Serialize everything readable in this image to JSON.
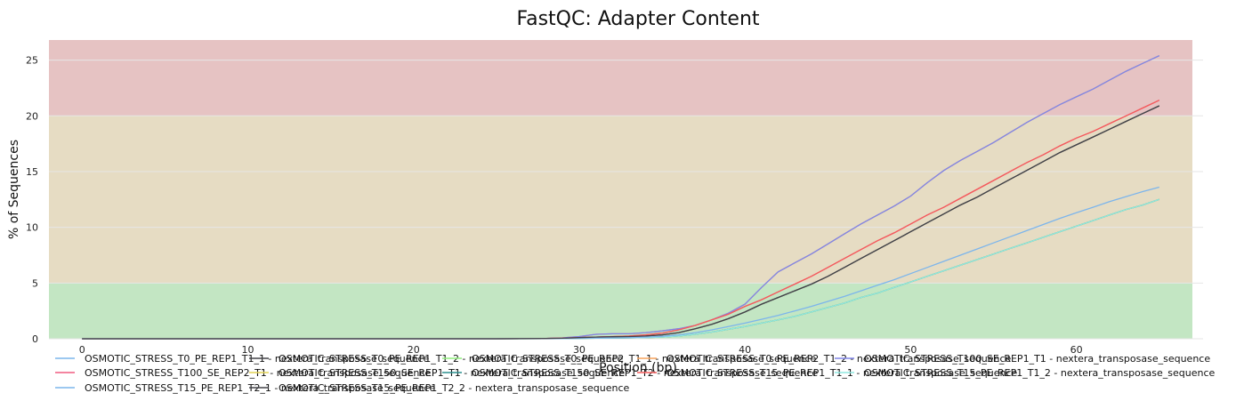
{
  "chart_data": {
    "type": "line",
    "title": "FastQC: Adapter Content",
    "xlabel": "Position (bp)",
    "ylabel": "% of Sequences",
    "xlim": [
      -2,
      67
    ],
    "ylim": [
      0,
      26.8
    ],
    "xticks": [
      0,
      10,
      20,
      30,
      40,
      50,
      60
    ],
    "yticks": [
      0,
      5,
      10,
      15,
      20,
      25
    ],
    "grid": true,
    "legend_position": "bottom",
    "bands": [
      {
        "from": 0,
        "to": 5,
        "color": "#c3e6c3"
      },
      {
        "from": 5,
        "to": 20,
        "color": "#e6dcc3"
      },
      {
        "from": 20,
        "to": 26.8,
        "color": "#e6c3c3"
      }
    ],
    "x": [
      0,
      5,
      10,
      15,
      20,
      25,
      28,
      29,
      30,
      31,
      32,
      33,
      34,
      35,
      36,
      37,
      38,
      39,
      40,
      41,
      42,
      43,
      44,
      45,
      46,
      47,
      48,
      49,
      50,
      51,
      52,
      53,
      54,
      55,
      56,
      57,
      58,
      59,
      60,
      61,
      62,
      63,
      64,
      65
    ],
    "series": [
      {
        "name": "OSMOTIC_STRESS_T0_PE_REP1_T1_1 - nextera_transposase_sequence",
        "color": "#7cb5ec",
        "values": [
          0,
          0,
          0,
          0,
          0,
          0,
          0.03,
          0.08,
          0.2,
          0.4,
          0.45,
          0.45,
          0.55,
          0.7,
          0.9,
          1.2,
          1.7,
          2.3,
          3.1,
          4.6,
          6.0,
          6.8,
          7.6,
          8.5,
          9.4,
          10.3,
          11.1,
          11.9,
          12.8,
          14.0,
          15.1,
          16.0,
          16.8,
          17.6,
          18.5,
          19.4,
          20.2,
          21.0,
          21.7,
          22.4,
          23.2,
          24.0,
          24.7,
          25.4
        ]
      },
      {
        "name": "OSMOTIC_STRESS_T0_PE_REP1_T1_2 - nextera_transposase_sequence",
        "color": "#434348",
        "values": [
          0,
          0,
          0,
          0,
          0,
          0,
          0.02,
          0.05,
          0.1,
          0.15,
          0.18,
          0.2,
          0.25,
          0.35,
          0.55,
          0.9,
          1.3,
          1.8,
          2.4,
          3.1,
          3.7,
          4.3,
          4.9,
          5.6,
          6.4,
          7.2,
          8.0,
          8.8,
          9.6,
          10.4,
          11.2,
          12.0,
          12.7,
          13.5,
          14.3,
          15.1,
          15.9,
          16.7,
          17.4,
          18.1,
          18.8,
          19.5,
          20.2,
          20.9
        ]
      },
      {
        "name": "OSMOTIC_STRESS_T0_PE_REP2_T1_1 - nextera_transposase_sequence",
        "color": "#90ed7d",
        "values": [
          0,
          0,
          0,
          0,
          0,
          0,
          0.01,
          0.02,
          0.03,
          0.05,
          0.06,
          0.08,
          0.1,
          0.15,
          0.25,
          0.4,
          0.6,
          0.85,
          1.1,
          1.4,
          1.7,
          2.0,
          2.4,
          2.8,
          3.2,
          3.7,
          4.1,
          4.6,
          5.1,
          5.6,
          6.1,
          6.6,
          7.1,
          7.6,
          8.1,
          8.6,
          9.1,
          9.6,
          10.1,
          10.6,
          11.1,
          11.6,
          12.0,
          12.5
        ]
      },
      {
        "name": "OSMOTIC_STRESS_T0_PE_REP2_T1_2 - nextera_transposase_sequence",
        "color": "#f7a35c",
        "values": [
          0,
          0,
          0,
          0,
          0,
          0,
          0.03,
          0.08,
          0.2,
          0.4,
          0.45,
          0.45,
          0.55,
          0.7,
          0.9,
          1.2,
          1.7,
          2.3,
          3.1,
          4.6,
          6.0,
          6.8,
          7.6,
          8.5,
          9.4,
          10.3,
          11.1,
          11.9,
          12.8,
          14.0,
          15.1,
          16.0,
          16.8,
          17.6,
          18.5,
          19.4,
          20.2,
          21.0,
          21.7,
          22.4,
          23.2,
          24.0,
          24.7,
          25.4
        ]
      },
      {
        "name": "OSMOTIC_STRESS_T100_SE_REP1_T1 - nextera_transposase_sequence",
        "color": "#8085e9",
        "values": [
          0,
          0,
          0,
          0,
          0,
          0,
          0.03,
          0.08,
          0.2,
          0.4,
          0.45,
          0.45,
          0.55,
          0.7,
          0.9,
          1.2,
          1.7,
          2.3,
          3.1,
          4.6,
          6.0,
          6.8,
          7.6,
          8.5,
          9.4,
          10.3,
          11.1,
          11.9,
          12.8,
          14.0,
          15.1,
          16.0,
          16.8,
          17.6,
          18.5,
          19.4,
          20.2,
          21.0,
          21.7,
          22.4,
          23.2,
          24.0,
          24.7,
          25.4
        ]
      },
      {
        "name": "OSMOTIC_STRESS_T100_SE_REP2_T1 - nextera_transposase_sequence",
        "color": "#f15c80",
        "values": [
          0,
          0,
          0,
          0,
          0,
          0,
          0.02,
          0.05,
          0.1,
          0.15,
          0.2,
          0.25,
          0.35,
          0.5,
          0.8,
          1.2,
          1.7,
          2.2,
          2.9,
          3.5,
          4.2,
          4.9,
          5.6,
          6.4,
          7.2,
          8.0,
          8.8,
          9.5,
          10.3,
          11.1,
          11.8,
          12.6,
          13.4,
          14.2,
          15.0,
          15.8,
          16.5,
          17.3,
          18.0,
          18.6,
          19.3,
          20.0,
          20.7,
          21.4
        ]
      },
      {
        "name": "OSMOTIC_STRESS_T150_SE_REP1_T1 - nextera_transposase_sequence",
        "color": "#e4d354",
        "values": [
          0,
          0,
          0,
          0,
          0,
          0,
          0.01,
          0.02,
          0.03,
          0.05,
          0.06,
          0.08,
          0.1,
          0.15,
          0.25,
          0.4,
          0.6,
          0.85,
          1.1,
          1.4,
          1.7,
          2.0,
          2.4,
          2.8,
          3.2,
          3.7,
          4.1,
          4.6,
          5.1,
          5.6,
          6.1,
          6.6,
          7.1,
          7.6,
          8.1,
          8.6,
          9.1,
          9.6,
          10.1,
          10.6,
          11.1,
          11.6,
          12.0,
          12.5
        ]
      },
      {
        "name": "OSMOTIC_STRESS_T150_SE_REP1_T2 - nextera_transposase_sequence",
        "color": "#2b908f",
        "values": [
          0,
          0,
          0,
          0,
          0,
          0,
          0.01,
          0.02,
          0.03,
          0.05,
          0.06,
          0.08,
          0.1,
          0.15,
          0.25,
          0.4,
          0.6,
          0.85,
          1.1,
          1.4,
          1.7,
          2.0,
          2.4,
          2.8,
          3.2,
          3.7,
          4.1,
          4.6,
          5.1,
          5.6,
          6.1,
          6.6,
          7.1,
          7.6,
          8.1,
          8.6,
          9.1,
          9.6,
          10.1,
          10.6,
          11.1,
          11.6,
          12.0,
          12.5
        ]
      },
      {
        "name": "OSMOTIC_STRESS_T15_PE_REP1_T1_1 - nextera_transposase_sequence",
        "color": "#f45b5b",
        "values": [
          0,
          0,
          0,
          0,
          0,
          0,
          0.02,
          0.05,
          0.1,
          0.15,
          0.2,
          0.25,
          0.35,
          0.5,
          0.8,
          1.2,
          1.7,
          2.2,
          2.9,
          3.5,
          4.2,
          4.9,
          5.6,
          6.4,
          7.2,
          8.0,
          8.8,
          9.5,
          10.3,
          11.1,
          11.8,
          12.6,
          13.4,
          14.2,
          15.0,
          15.8,
          16.5,
          17.3,
          18.0,
          18.6,
          19.3,
          20.0,
          20.7,
          21.4
        ]
      },
      {
        "name": "OSMOTIC_STRESS_T15_PE_REP1_T1_2 - nextera_transposase_sequence",
        "color": "#91e8e1",
        "values": [
          0,
          0,
          0,
          0,
          0,
          0,
          0.01,
          0.02,
          0.03,
          0.05,
          0.06,
          0.08,
          0.1,
          0.15,
          0.25,
          0.4,
          0.6,
          0.85,
          1.1,
          1.4,
          1.7,
          2.0,
          2.4,
          2.8,
          3.2,
          3.7,
          4.1,
          4.6,
          5.1,
          5.6,
          6.1,
          6.6,
          7.1,
          7.6,
          8.1,
          8.6,
          9.1,
          9.6,
          10.1,
          10.6,
          11.1,
          11.6,
          12.0,
          12.5
        ]
      },
      {
        "name": "OSMOTIC_STRESS_T15_PE_REP1_T2_1 - nextera_transposase_sequence",
        "color": "#7cb5ec",
        "values": [
          0,
          0,
          0,
          0,
          0,
          0,
          0.01,
          0.02,
          0.04,
          0.06,
          0.08,
          0.1,
          0.15,
          0.22,
          0.35,
          0.55,
          0.8,
          1.1,
          1.4,
          1.75,
          2.1,
          2.5,
          2.9,
          3.35,
          3.8,
          4.3,
          4.8,
          5.3,
          5.85,
          6.4,
          6.95,
          7.5,
          8.05,
          8.6,
          9.15,
          9.7,
          10.25,
          10.8,
          11.3,
          11.8,
          12.3,
          12.75,
          13.2,
          13.6
        ]
      },
      {
        "name": "OSMOTIC_STRESS_T15_PE_REP1_T2_2 - nextera_transposase_sequence",
        "color": "#434348",
        "values": [
          0,
          0,
          0,
          0,
          0,
          0,
          0.02,
          0.05,
          0.1,
          0.15,
          0.18,
          0.2,
          0.25,
          0.35,
          0.55,
          0.9,
          1.3,
          1.8,
          2.4,
          3.1,
          3.7,
          4.3,
          4.9,
          5.6,
          6.4,
          7.2,
          8.0,
          8.8,
          9.6,
          10.4,
          11.2,
          12.0,
          12.7,
          13.5,
          14.3,
          15.1,
          15.9,
          16.7,
          17.4,
          18.1,
          18.8,
          19.5,
          20.2,
          20.9
        ]
      }
    ]
  }
}
